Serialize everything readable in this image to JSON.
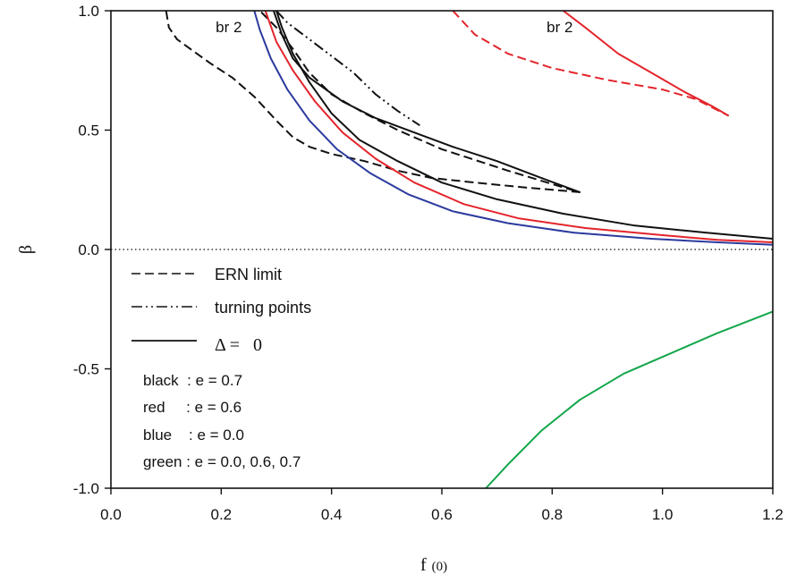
{
  "chart_data": {
    "type": "line",
    "xlabel": "f",
    "xlabel_sub": "(0)",
    "ylabel": "β",
    "xlim": [
      0.0,
      1.2
    ],
    "ylim": [
      -1.0,
      1.0
    ],
    "x_ticks": [
      "0.0",
      "0.2",
      "0.4",
      "0.6",
      "0.8",
      "1.0",
      "1.2"
    ],
    "x_tick_values": [
      0.0,
      0.2,
      0.4,
      0.6,
      0.8,
      1.0,
      1.2
    ],
    "y_ticks": [
      "1.0",
      "0.5",
      "0.0",
      "-0.5",
      "-1.0"
    ],
    "y_tick_values": [
      1.0,
      0.5,
      0.0,
      -0.5,
      -1.0
    ],
    "colors": {
      "black": "#111111",
      "red": "#e3242b",
      "blue": "#2b3a9e",
      "green": "#12a64a"
    },
    "series": [
      {
        "style": "dashed",
        "color": "black",
        "points": [
          [
            0.1,
            1.0
          ],
          [
            0.105,
            0.93
          ],
          [
            0.12,
            0.88
          ],
          [
            0.15,
            0.83
          ],
          [
            0.18,
            0.78
          ],
          [
            0.22,
            0.72
          ],
          [
            0.26,
            0.64
          ],
          [
            0.3,
            0.54
          ],
          [
            0.33,
            0.47
          ],
          [
            0.36,
            0.43
          ],
          [
            0.4,
            0.4
          ],
          [
            0.46,
            0.37
          ],
          [
            0.52,
            0.33
          ],
          [
            0.58,
            0.3
          ],
          [
            0.66,
            0.28
          ],
          [
            0.75,
            0.26
          ],
          [
            0.85,
            0.24
          ],
          [
            0.82,
            0.26
          ],
          [
            0.72,
            0.33
          ],
          [
            0.6,
            0.42
          ],
          [
            0.52,
            0.5
          ],
          [
            0.46,
            0.57
          ],
          [
            0.4,
            0.65
          ],
          [
            0.36,
            0.74
          ],
          [
            0.33,
            0.84
          ],
          [
            0.3,
            0.93
          ],
          [
            0.27,
            1.0
          ]
        ]
      },
      {
        "style": "dashdot",
        "color": "black",
        "points": [
          [
            0.3,
            1.0
          ],
          [
            0.32,
            0.95
          ],
          [
            0.36,
            0.88
          ],
          [
            0.4,
            0.81
          ],
          [
            0.44,
            0.74
          ],
          [
            0.48,
            0.65
          ],
          [
            0.52,
            0.58
          ],
          [
            0.56,
            0.52
          ]
        ]
      },
      {
        "style": "solid",
        "color": "black",
        "points": [
          [
            0.3,
            1.0
          ],
          [
            0.31,
            0.93
          ],
          [
            0.33,
            0.82
          ],
          [
            0.36,
            0.7
          ],
          [
            0.4,
            0.57
          ],
          [
            0.45,
            0.46
          ],
          [
            0.52,
            0.37
          ],
          [
            0.6,
            0.28
          ],
          [
            0.7,
            0.21
          ],
          [
            0.82,
            0.15
          ],
          [
            0.95,
            0.1
          ],
          [
            1.08,
            0.07
          ],
          [
            1.2,
            0.045
          ]
        ]
      },
      {
        "style": "solid",
        "color": "black",
        "points": [
          [
            0.85,
            0.24
          ],
          [
            0.78,
            0.3
          ],
          [
            0.7,
            0.37
          ],
          [
            0.62,
            0.43
          ],
          [
            0.55,
            0.49
          ],
          [
            0.48,
            0.55
          ],
          [
            0.42,
            0.62
          ],
          [
            0.36,
            0.72
          ],
          [
            0.33,
            0.8
          ],
          [
            0.31,
            0.9
          ],
          [
            0.295,
            1.0
          ]
        ]
      },
      {
        "style": "solid",
        "color": "red",
        "points": [
          [
            0.28,
            1.0
          ],
          [
            0.3,
            0.87
          ],
          [
            0.33,
            0.75
          ],
          [
            0.37,
            0.62
          ],
          [
            0.42,
            0.49
          ],
          [
            0.48,
            0.38
          ],
          [
            0.55,
            0.28
          ],
          [
            0.64,
            0.19
          ],
          [
            0.74,
            0.13
          ],
          [
            0.86,
            0.09
          ],
          [
            1.0,
            0.06
          ],
          [
            1.1,
            0.04
          ],
          [
            1.2,
            0.03
          ]
        ]
      },
      {
        "style": "solid",
        "color": "red",
        "points": [
          [
            0.82,
            1.0
          ],
          [
            0.86,
            0.93
          ],
          [
            0.92,
            0.82
          ],
          [
            0.98,
            0.74
          ],
          [
            1.04,
            0.66
          ],
          [
            1.09,
            0.6
          ],
          [
            1.12,
            0.56
          ]
        ]
      },
      {
        "style": "dashed",
        "color": "red",
        "points": [
          [
            0.62,
            1.0
          ],
          [
            0.66,
            0.9
          ],
          [
            0.72,
            0.82
          ],
          [
            0.8,
            0.76
          ],
          [
            0.9,
            0.71
          ],
          [
            1.0,
            0.67
          ],
          [
            1.06,
            0.63
          ],
          [
            1.12,
            0.56
          ]
        ]
      },
      {
        "style": "solid",
        "color": "blue",
        "points": [
          [
            0.26,
            1.0
          ],
          [
            0.27,
            0.92
          ],
          [
            0.29,
            0.8
          ],
          [
            0.32,
            0.67
          ],
          [
            0.36,
            0.54
          ],
          [
            0.41,
            0.42
          ],
          [
            0.47,
            0.32
          ],
          [
            0.54,
            0.23
          ],
          [
            0.62,
            0.16
          ],
          [
            0.72,
            0.11
          ],
          [
            0.84,
            0.07
          ],
          [
            0.98,
            0.045
          ],
          [
            1.1,
            0.03
          ],
          [
            1.2,
            0.02
          ]
        ]
      },
      {
        "style": "solid",
        "color": "green",
        "points": [
          [
            0.68,
            -1.0
          ],
          [
            0.72,
            -0.9
          ],
          [
            0.78,
            -0.76
          ],
          [
            0.85,
            -0.63
          ],
          [
            0.93,
            -0.52
          ],
          [
            1.02,
            -0.43
          ],
          [
            1.1,
            -0.35
          ],
          [
            1.2,
            -0.26
          ]
        ]
      }
    ],
    "annotations": [
      {
        "text": "br 2",
        "x": 0.19,
        "y": 0.91
      },
      {
        "text": "br 2",
        "x": 0.79,
        "y": 0.91
      }
    ],
    "reference_line": {
      "y": 0.0,
      "style": "dotted"
    },
    "legend": {
      "entries": [
        {
          "label": "ERN limit",
          "style": "dashed"
        },
        {
          "label": "turning points",
          "style": "dashdot"
        },
        {
          "label": "Δ =   0",
          "style": "solid"
        }
      ],
      "notes": [
        "black  : e = 0.7",
        "red     : e = 0.6",
        "blue    : e = 0.0",
        "green : e = 0.0, 0.6, 0.7"
      ]
    }
  }
}
